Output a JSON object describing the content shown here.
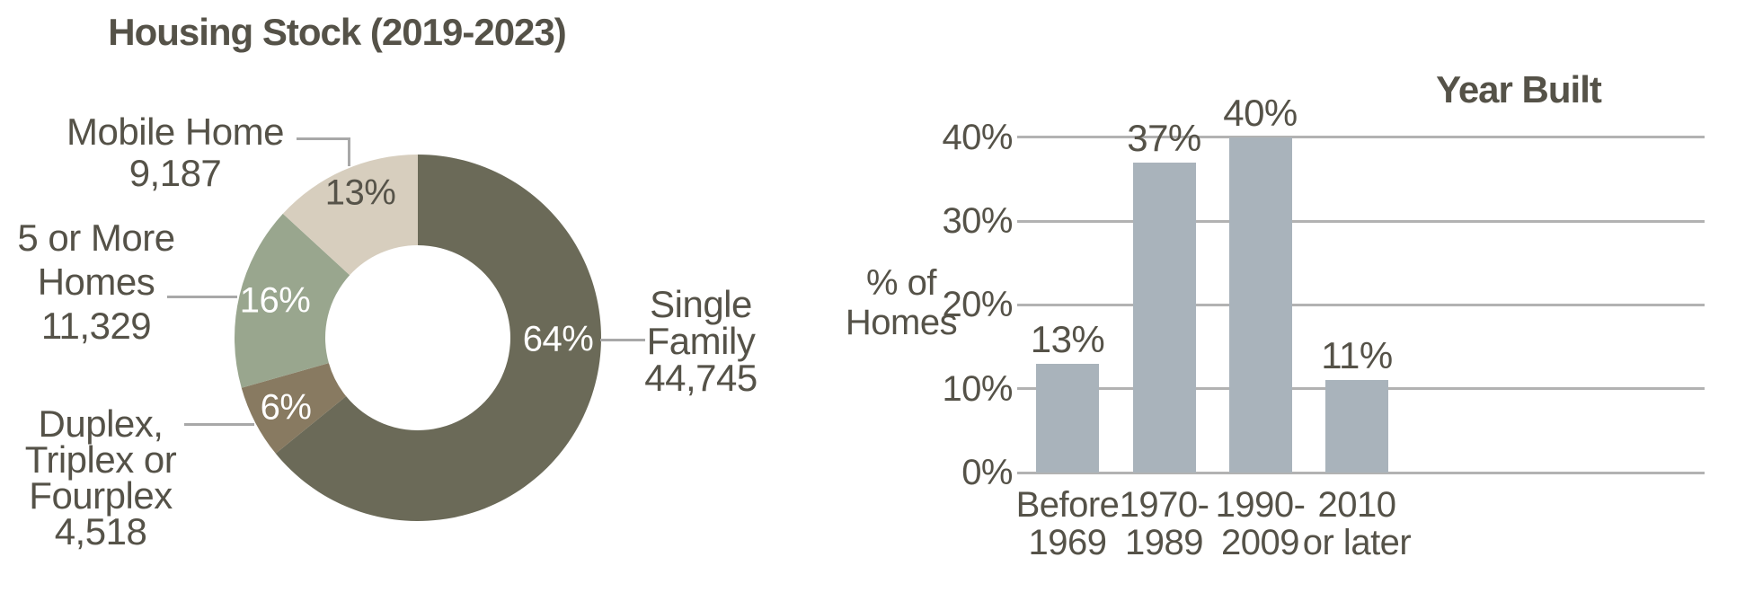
{
  "page": {
    "background": "#ffffff",
    "text_color": "#555248"
  },
  "chart_data": [
    {
      "type": "pie",
      "variant": "donut",
      "title": "Housing Stock (2019-2023)",
      "start_angle_deg": 0,
      "direction": "clockwise",
      "hole_ratio": 0.505,
      "leader_line_color": "#a8a8a8",
      "slices": [
        {
          "label": "Single Family",
          "value": 44745,
          "value_text": "44,745",
          "pct_label": "64%",
          "color": "#6b6a58",
          "pct_text_color": "#ffffff"
        },
        {
          "label": "Duplex, Triplex or Fourplex",
          "value": 4518,
          "value_text": "4,518",
          "pct_label": "6%",
          "color": "#887a61",
          "pct_text_color": "#ffffff"
        },
        {
          "label": "5 or More Homes",
          "value": 11329,
          "value_text": "11,329",
          "pct_label": "16%",
          "color": "#99a68e",
          "pct_text_color": "#ffffff"
        },
        {
          "label": "Mobile Home",
          "value": 9187,
          "value_text": "9,187",
          "pct_label": "13%",
          "color": "#d7cebe",
          "pct_text_color": "#565349"
        }
      ],
      "callouts": [
        {
          "for": "Mobile Home",
          "lines": [
            "Mobile Home",
            "9,187"
          ]
        },
        {
          "for": "5 or More Homes",
          "lines": [
            "5 or More",
            "Homes",
            "11,329"
          ]
        },
        {
          "for": "Duplex, Triplex or Fourplex",
          "lines": [
            "Duplex,",
            "Triplex or",
            "Fourplex",
            "4,518"
          ]
        },
        {
          "for": "Single Family",
          "lines": [
            "Single",
            "Family",
            "44,745"
          ]
        }
      ]
    },
    {
      "type": "bar",
      "title": "Year Built",
      "categories": [
        [
          "Before",
          "1969"
        ],
        [
          "1970-",
          "1989"
        ],
        [
          "1990-",
          "2009"
        ],
        [
          "2010",
          "or later"
        ]
      ],
      "values": [
        13,
        37,
        40,
        11
      ],
      "value_labels": [
        "13%",
        "37%",
        "40%",
        "11%"
      ],
      "ylabel_lines": [
        "% of",
        "Homes"
      ],
      "yticks": [
        {
          "label": "40%",
          "value": 40
        },
        {
          "label": "30%",
          "value": 30
        },
        {
          "label": "20%",
          "value": 20
        },
        {
          "label": "10%",
          "value": 10
        },
        {
          "label": "0%",
          "value": 0
        }
      ],
      "ylim": [
        0,
        40
      ],
      "grid": true,
      "legend": "none",
      "bar_color": "#a9b3bb",
      "gridline_color": "#b2b2b2"
    }
  ]
}
